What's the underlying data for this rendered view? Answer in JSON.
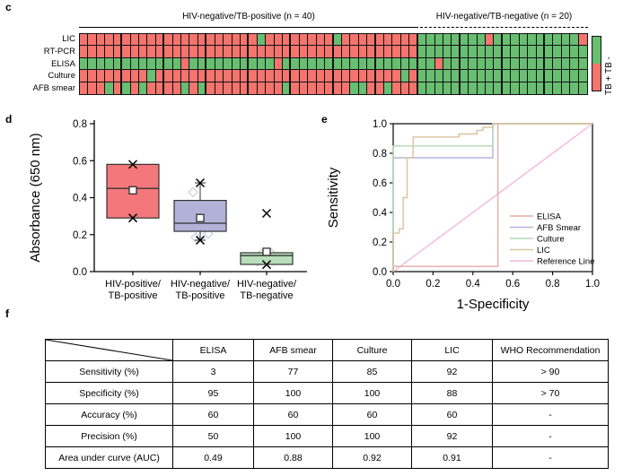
{
  "panels": {
    "c": "c",
    "d": "d",
    "e": "e",
    "f": "f"
  },
  "heatmap": {
    "group1_label": "HIV-negative/TB-positive (n = 40)",
    "group2_label": "HIV-negative/TB-negative (n = 20)",
    "colors": {
      "tb_positive": "#f4746e",
      "tb_negative": "#68be71"
    },
    "legend_label": "TB + TB -",
    "legend_top_color": "#68be71",
    "legend_bottom_color": "#f4746e",
    "rows": [
      {
        "label": "LIC",
        "pattern": "RRRRRRRRRRRRRRRRRRRRRGRRRRRRRRGRRRRRRRRRGGGGGGGGRGGGGGGGGGGR"
      },
      {
        "label": "RT-PCR",
        "pattern": "RRRRRRRRRRRRRRRRRRRRRRRRRRRRRRRRRRRRRRRRGGGGGGGGGGGGGGGGGGGG"
      },
      {
        "label": "ELISA",
        "pattern": "GGGGGGGGGGGGRGGGGGGGGGGRGGGGGGGGGGGGGGGGGGRGGGGGGGGGGGGGGGGG"
      },
      {
        "label": "Culture",
        "pattern": "RRRRRRRRGRRRRRRRRRRRRRRRRRRRRRRRRRRRRRGRGGGGGGGGGGGGGGGGGGGG"
      },
      {
        "label": "AFB smear",
        "pattern": "RRRGRGRGRRRRGRGRRRRRRRRRGRRRRRRRGGRRGRRRGGGGGGGGGGGGGGGGGGGG"
      }
    ]
  },
  "chart_data": [
    {
      "type": "heatmap",
      "title": "",
      "rows": [
        "LIC",
        "RT-PCR",
        "ELISA",
        "Culture",
        "AFB smear"
      ],
      "columns": 60,
      "groups": [
        {
          "label": "HIV-negative/TB-positive (n = 40)",
          "n": 40
        },
        {
          "label": "HIV-negative/TB-negative (n = 20)",
          "n": 20
        }
      ],
      "legend": {
        "TB +": "#f4746e",
        "TB -": "#68be71"
      }
    },
    {
      "type": "box",
      "ylabel": "Absorbance (650 nm)",
      "yticks": [
        "0.0",
        "0.2",
        "0.4",
        "0.6",
        "0.8"
      ],
      "ylim": [
        0,
        0.8
      ],
      "groups": [
        {
          "label1": "HIV-positive/",
          "label2": "TB-positive",
          "color": "#f4777b",
          "q1": 0.29,
          "q3": 0.58,
          "median": 0.45,
          "mean": 0.44,
          "whisker_low": null,
          "whisker_high": null,
          "x_markers": [
            0.58,
            0.29
          ],
          "diamonds": []
        },
        {
          "label1": "HIV-negative/",
          "label2": "TB-positive",
          "color": "#b2b2d8",
          "q1": 0.218,
          "q3": 0.385,
          "median": 0.262,
          "mean": 0.29,
          "whisker_low": 0.17,
          "whisker_high": 0.48,
          "x_markers": [
            0.48,
            0.17
          ],
          "diamonds": [
            {
              "dx": -8,
              "v": 0.43
            },
            {
              "dx": 7,
              "v": 0.23
            },
            {
              "dx": 9,
              "v": 0.205
            },
            {
              "dx": -5,
              "v": 0.185
            }
          ],
          "diamond_color": "#b9cfe8"
        },
        {
          "label1": "HIV-negative/",
          "label2": "TB-negative",
          "color": "#b9dfba",
          "q1": 0.039,
          "q3": 0.102,
          "median": 0.087,
          "mean": 0.107,
          "whisker_low": null,
          "whisker_high": null,
          "x_markers": [
            0.315,
            0.038
          ],
          "diamonds": [
            {
              "dx": -10,
              "v": 0.055
            },
            {
              "dx": 8,
              "v": 0.06
            },
            {
              "dx": 5,
              "v": 0.1
            },
            {
              "dx": -6,
              "v": 0.095
            }
          ],
          "diamond_color": "#bcd9bc"
        }
      ]
    },
    {
      "type": "line",
      "xlabel": "1-Specificity",
      "ylabel": "Sensitivity",
      "xticks": [
        "0.0",
        "0.2",
        "0.4",
        "0.6",
        "0.8",
        "1.0"
      ],
      "yticks": [
        "0.0",
        "0.2",
        "0.4",
        "0.6",
        "0.8",
        "1.0"
      ],
      "xlim": [
        0,
        1
      ],
      "ylim": [
        0,
        1
      ],
      "legend_position": "inside-right",
      "curves": [
        {
          "name": "ELISA",
          "color": "#e9a9a3",
          "points": [
            [
              0,
              0
            ],
            [
              0,
              0.035
            ],
            [
              0.525,
              0.035
            ],
            [
              0.525,
              1
            ],
            [
              1,
              1
            ]
          ]
        },
        {
          "name": "AFB Smear",
          "color": "#b4b4dc",
          "points": [
            [
              0,
              0
            ],
            [
              0,
              0.77
            ],
            [
              0.5,
              0.77
            ],
            [
              0.5,
              1
            ],
            [
              1,
              1
            ]
          ]
        },
        {
          "name": "Culture",
          "color": "#b3d9b3",
          "points": [
            [
              0,
              0
            ],
            [
              0,
              0.85
            ],
            [
              0.5,
              0.85
            ],
            [
              0.5,
              1
            ],
            [
              1,
              1
            ]
          ]
        },
        {
          "name": "LIC",
          "color": "#d9c29f",
          "points": [
            [
              0,
              0
            ],
            [
              0,
              0.26
            ],
            [
              0.03,
              0.26
            ],
            [
              0.03,
              0.29
            ],
            [
              0.05,
              0.29
            ],
            [
              0.05,
              0.5
            ],
            [
              0.07,
              0.5
            ],
            [
              0.07,
              0.77
            ],
            [
              0.1,
              0.77
            ],
            [
              0.1,
              0.91
            ],
            [
              0.33,
              0.91
            ],
            [
              0.33,
              0.93
            ],
            [
              0.42,
              0.93
            ],
            [
              0.42,
              0.955
            ],
            [
              0.45,
              0.955
            ],
            [
              0.45,
              0.975
            ],
            [
              0.5,
              0.975
            ],
            [
              0.5,
              1
            ],
            [
              1,
              1
            ]
          ]
        },
        {
          "name": "Reference Line",
          "color": "#f2b8dd",
          "points": [
            [
              0,
              0
            ],
            [
              1,
              1
            ]
          ]
        }
      ]
    },
    {
      "type": "table",
      "col_headers": [
        "",
        "ELISA",
        "AFB smear",
        "Culture",
        "LIC",
        "WHO Recommendation"
      ],
      "rows": [
        {
          "label": "Sensitivity (%)",
          "values": [
            "3",
            "77",
            "85",
            "92",
            "> 90"
          ]
        },
        {
          "label": "Specificity (%)",
          "values": [
            "95",
            "100",
            "100",
            "88",
            "> 70"
          ]
        },
        {
          "label": "Accuracy (%)",
          "values": [
            "60",
            "60",
            "60",
            "60",
            "-"
          ]
        },
        {
          "label": "Precision (%)",
          "values": [
            "50",
            "100",
            "100",
            "92",
            "-"
          ]
        },
        {
          "label": "Area under curve (AUC)",
          "values": [
            "0.49",
            "0.88",
            "0.92",
            "0.91",
            "-"
          ]
        }
      ]
    }
  ]
}
